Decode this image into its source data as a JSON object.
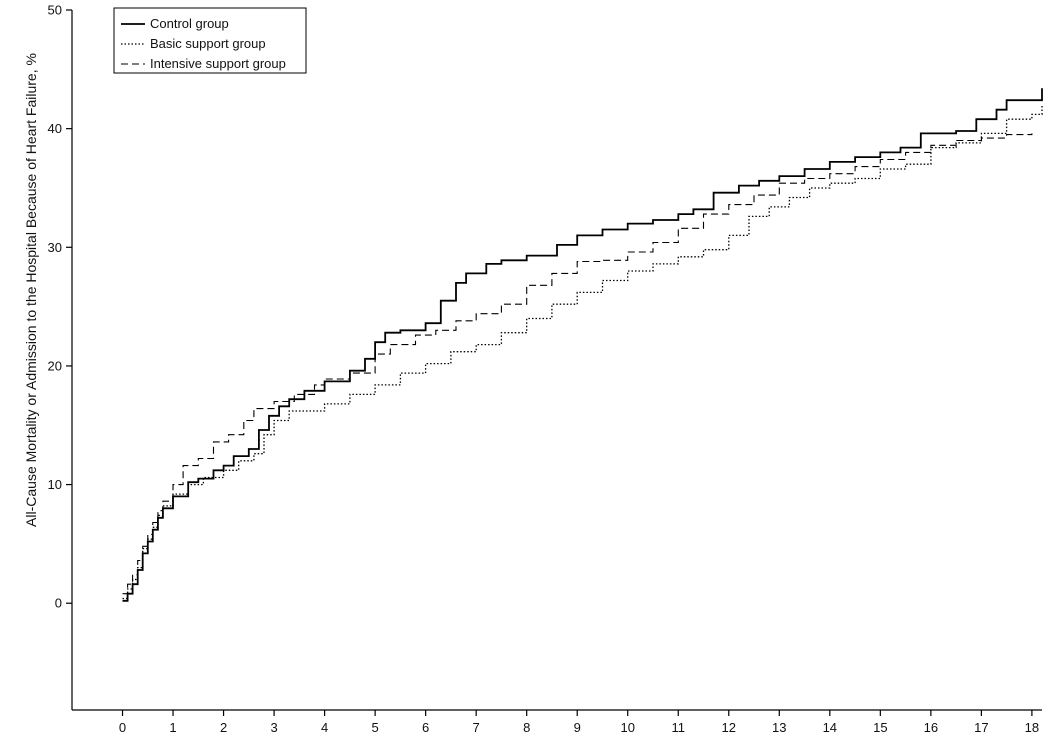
{
  "chart_data": {
    "type": "line",
    "title": "",
    "xlabel": "",
    "ylabel": "All-Cause Mortality or Admission to the Hospital Because of Heart Failure, %",
    "xlim": [
      -1,
      18.2
    ],
    "ylim": [
      -9,
      50
    ],
    "x_ticks": [
      "0",
      "1",
      "2",
      "3",
      "4",
      "5",
      "6",
      "7",
      "8",
      "9",
      "10",
      "11",
      "12",
      "13",
      "14",
      "15",
      "16",
      "17",
      "18"
    ],
    "y_ticks": [
      "0",
      "10",
      "20",
      "30",
      "40",
      "50"
    ],
    "grid": false,
    "legend_position": "top-left",
    "series": [
      {
        "name": "Control group",
        "dash": "solid",
        "color": "#000000",
        "points": [
          [
            0,
            0.2
          ],
          [
            0.1,
            0.8
          ],
          [
            0.2,
            1.6
          ],
          [
            0.3,
            2.8
          ],
          [
            0.4,
            4.2
          ],
          [
            0.5,
            5.2
          ],
          [
            0.6,
            6.2
          ],
          [
            0.7,
            7.2
          ],
          [
            0.8,
            8.0
          ],
          [
            1.0,
            9.0
          ],
          [
            1.3,
            10.2
          ],
          [
            1.5,
            10.5
          ],
          [
            1.8,
            11.2
          ],
          [
            2.0,
            11.6
          ],
          [
            2.2,
            12.4
          ],
          [
            2.5,
            13.0
          ],
          [
            2.7,
            14.6
          ],
          [
            2.9,
            15.8
          ],
          [
            3.1,
            16.6
          ],
          [
            3.3,
            17.2
          ],
          [
            3.6,
            17.9
          ],
          [
            4.0,
            18.7
          ],
          [
            4.5,
            19.6
          ],
          [
            4.8,
            20.6
          ],
          [
            5.0,
            22.0
          ],
          [
            5.2,
            22.8
          ],
          [
            5.5,
            23.0
          ],
          [
            6.0,
            23.6
          ],
          [
            6.3,
            25.5
          ],
          [
            6.6,
            27.0
          ],
          [
            6.8,
            27.8
          ],
          [
            7.2,
            28.6
          ],
          [
            7.5,
            28.9
          ],
          [
            8.0,
            29.3
          ],
          [
            8.6,
            30.2
          ],
          [
            9.0,
            31.0
          ],
          [
            9.5,
            31.5
          ],
          [
            10.0,
            32.0
          ],
          [
            10.5,
            32.3
          ],
          [
            11.0,
            32.8
          ],
          [
            11.3,
            33.2
          ],
          [
            11.7,
            34.6
          ],
          [
            12.2,
            35.2
          ],
          [
            12.6,
            35.6
          ],
          [
            13.0,
            36.0
          ],
          [
            13.5,
            36.6
          ],
          [
            14.0,
            37.2
          ],
          [
            14.5,
            37.6
          ],
          [
            15.0,
            38.0
          ],
          [
            15.4,
            38.4
          ],
          [
            15.8,
            39.6
          ],
          [
            16.5,
            39.8
          ],
          [
            16.9,
            40.8
          ],
          [
            17.3,
            41.6
          ],
          [
            17.5,
            42.4
          ],
          [
            18.2,
            43.4
          ]
        ]
      },
      {
        "name": "Basic support group",
        "dash": "dotted",
        "color": "#000000",
        "points": [
          [
            0,
            0.4
          ],
          [
            0.1,
            1.2
          ],
          [
            0.2,
            2.0
          ],
          [
            0.3,
            3.0
          ],
          [
            0.4,
            4.6
          ],
          [
            0.5,
            5.4
          ],
          [
            0.6,
            6.4
          ],
          [
            0.7,
            7.4
          ],
          [
            0.8,
            8.2
          ],
          [
            1.0,
            9.2
          ],
          [
            1.3,
            10.0
          ],
          [
            1.6,
            10.6
          ],
          [
            2.0,
            11.2
          ],
          [
            2.3,
            12.0
          ],
          [
            2.6,
            12.6
          ],
          [
            2.8,
            14.2
          ],
          [
            3.0,
            15.4
          ],
          [
            3.3,
            16.2
          ],
          [
            3.8,
            16.2
          ],
          [
            4.0,
            16.8
          ],
          [
            4.5,
            17.6
          ],
          [
            5.0,
            18.4
          ],
          [
            5.5,
            19.4
          ],
          [
            6.0,
            20.2
          ],
          [
            6.5,
            21.2
          ],
          [
            7.0,
            21.8
          ],
          [
            7.5,
            22.8
          ],
          [
            8.0,
            24.0
          ],
          [
            8.5,
            25.2
          ],
          [
            9.0,
            26.2
          ],
          [
            9.5,
            27.2
          ],
          [
            10.0,
            28.0
          ],
          [
            10.5,
            28.6
          ],
          [
            11.0,
            29.2
          ],
          [
            11.5,
            29.8
          ],
          [
            12.0,
            31.0
          ],
          [
            12.4,
            32.6
          ],
          [
            12.8,
            33.4
          ],
          [
            13.2,
            34.2
          ],
          [
            13.6,
            35.0
          ],
          [
            14.0,
            35.4
          ],
          [
            14.5,
            35.8
          ],
          [
            15.0,
            36.6
          ],
          [
            15.5,
            37.0
          ],
          [
            16.0,
            38.4
          ],
          [
            16.5,
            38.8
          ],
          [
            17.0,
            39.6
          ],
          [
            17.5,
            40.8
          ],
          [
            18.0,
            41.2
          ],
          [
            18.2,
            42.0
          ]
        ]
      },
      {
        "name": "Intensive support group",
        "dash": "dashed",
        "color": "#000000",
        "points": [
          [
            0,
            0.8
          ],
          [
            0.1,
            1.6
          ],
          [
            0.2,
            2.4
          ],
          [
            0.3,
            3.6
          ],
          [
            0.4,
            4.8
          ],
          [
            0.5,
            5.8
          ],
          [
            0.6,
            6.8
          ],
          [
            0.7,
            7.8
          ],
          [
            0.8,
            8.6
          ],
          [
            1.0,
            10.0
          ],
          [
            1.2,
            11.6
          ],
          [
            1.5,
            12.2
          ],
          [
            1.8,
            13.6
          ],
          [
            2.1,
            14.2
          ],
          [
            2.4,
            15.4
          ],
          [
            2.6,
            16.4
          ],
          [
            3.0,
            17.0
          ],
          [
            3.4,
            17.6
          ],
          [
            3.8,
            18.4
          ],
          [
            4.0,
            18.9
          ],
          [
            4.5,
            19.4
          ],
          [
            5.0,
            21.0
          ],
          [
            5.3,
            21.8
          ],
          [
            5.8,
            22.6
          ],
          [
            6.2,
            23.0
          ],
          [
            6.6,
            23.8
          ],
          [
            7.0,
            24.4
          ],
          [
            7.5,
            25.2
          ],
          [
            8.0,
            26.8
          ],
          [
            8.5,
            27.8
          ],
          [
            9.0,
            28.8
          ],
          [
            9.5,
            28.9
          ],
          [
            10.0,
            29.6
          ],
          [
            10.5,
            30.4
          ],
          [
            11.0,
            31.6
          ],
          [
            11.5,
            32.8
          ],
          [
            12.0,
            33.6
          ],
          [
            12.5,
            34.4
          ],
          [
            13.0,
            35.4
          ],
          [
            13.5,
            35.8
          ],
          [
            14.0,
            36.2
          ],
          [
            14.5,
            36.8
          ],
          [
            15.0,
            37.4
          ],
          [
            15.5,
            38.0
          ],
          [
            16.0,
            38.6
          ],
          [
            16.5,
            39.0
          ],
          [
            17.0,
            39.2
          ],
          [
            17.5,
            39.5
          ],
          [
            18.0,
            39.6
          ]
        ]
      }
    ]
  }
}
